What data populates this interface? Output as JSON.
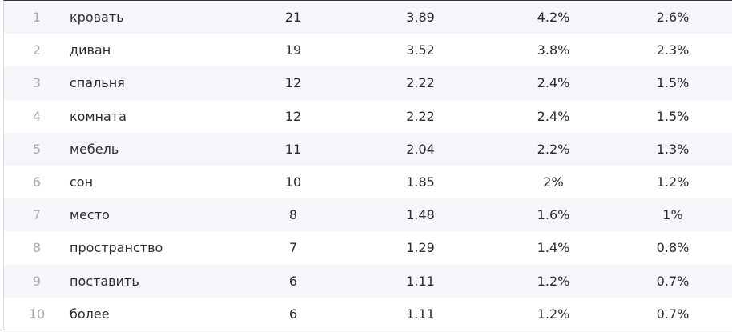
{
  "table": {
    "rows": [
      [
        "1",
        "кровать",
        "21",
        "3.89",
        "4.2%",
        "2.6%"
      ],
      [
        "2",
        "диван",
        "19",
        "3.52",
        "3.8%",
        "2.3%"
      ],
      [
        "3",
        "спальня",
        "12",
        "2.22",
        "2.4%",
        "1.5%"
      ],
      [
        "4",
        "комната",
        "12",
        "2.22",
        "2.4%",
        "1.5%"
      ],
      [
        "5",
        "мебель",
        "11",
        "2.04",
        "2.2%",
        "1.3%"
      ],
      [
        "6",
        "сон",
        "10",
        "1.85",
        "2%",
        "1.2%"
      ],
      [
        "7",
        "место",
        "8",
        "1.48",
        "1.6%",
        "1%"
      ],
      [
        "8",
        "пространство",
        "7",
        "1.29",
        "1.4%",
        "0.8%"
      ],
      [
        "9",
        "поставить",
        "6",
        "1.11",
        "1.2%",
        "0.7%"
      ],
      [
        "10",
        "более",
        "6",
        "1.11",
        "1.2%",
        "0.7%"
      ]
    ]
  }
}
